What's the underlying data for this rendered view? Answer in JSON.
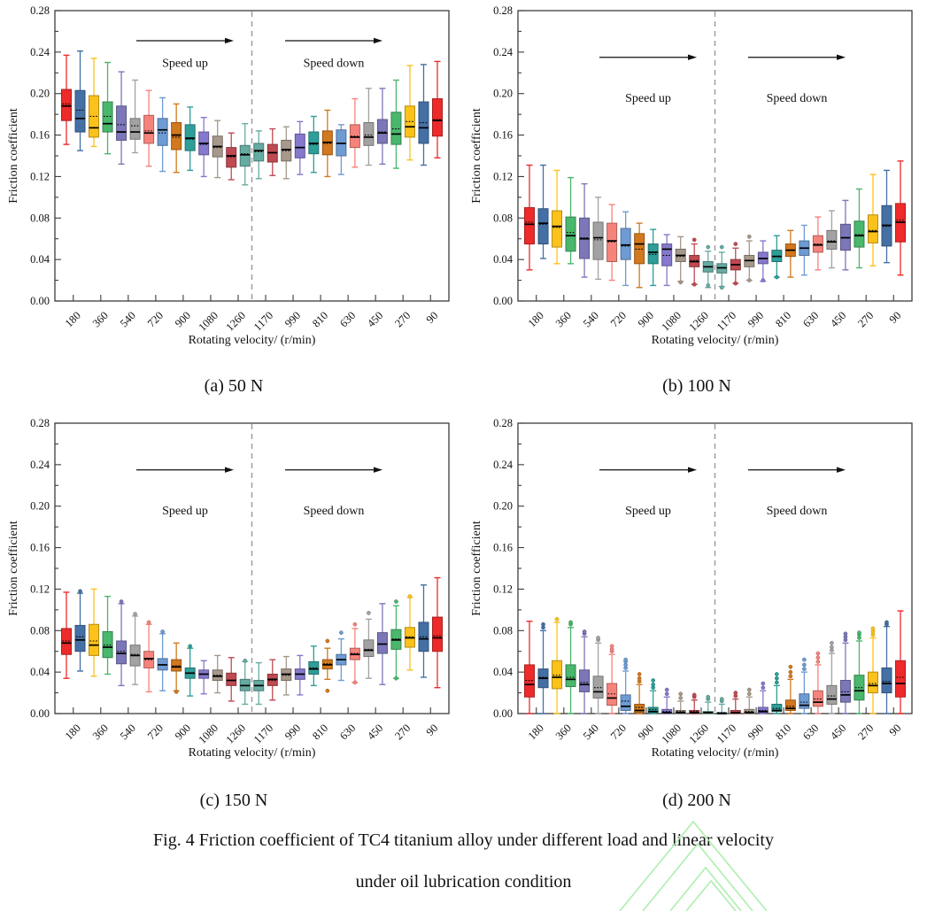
{
  "page": {
    "captions": {
      "a": "(a) 50 N",
      "b": "(b) 100 N",
      "c": "(c) 150 N",
      "d": "(d) 200 N"
    },
    "figure_caption_line1": "Fig. 4 Friction coefficient of TC4 titanium alloy under different load and linear velocity",
    "figure_caption_line2": "under oil lubrication condition"
  },
  "palette": [
    "#ED2B2B",
    "#4470A5",
    "#FBC21B",
    "#49B76C",
    "#7C77B8",
    "#A2A2A2",
    "#F5837C",
    "#6E9BD3",
    "#D2781E",
    "#2E9E99",
    "#8678CC",
    "#A6988A",
    "#BF4A52",
    "#66ABA2"
  ],
  "watermark_color": "#A5ECA5",
  "chart_shared": {
    "ylabel": "Friction coefficient",
    "xlabel": "Rotating velocity/ (r/min)",
    "ylim": [
      0,
      0.28
    ],
    "ytick_step": 0.04,
    "ytick_minor_step": 0.02,
    "x_tick_labels": [
      "180",
      "360",
      "540",
      "720",
      "900",
      "1080",
      "1260",
      "1170",
      "990",
      "810",
      "630",
      "450",
      "270",
      "90"
    ],
    "separator": "dashed-vertical-line-between-box-14-and-15",
    "color_rule": "box i uses palette[i] for i<14, palette[27-i] for i>=14",
    "box_format": "[whisker_low, q1, median, mean, q3, whisker_high, [outliers...]]"
  },
  "chart_data": [
    {
      "id": "a",
      "type": "box",
      "load": "50 N",
      "annotations": {
        "up_label": "Speed up",
        "down_label": "Speed down",
        "arrow_y": 0.251,
        "label_y": 0.226
      },
      "boxes": [
        [
          0.151,
          0.174,
          0.188,
          0.19,
          0.204,
          0.237
        ],
        [
          0.145,
          0.163,
          0.176,
          0.184,
          0.203,
          0.241
        ],
        [
          0.149,
          0.158,
          0.167,
          0.178,
          0.198,
          0.234
        ],
        [
          0.142,
          0.163,
          0.171,
          0.178,
          0.192,
          0.23
        ],
        [
          0.132,
          0.155,
          0.163,
          0.17,
          0.188,
          0.221
        ],
        [
          0.143,
          0.156,
          0.163,
          0.169,
          0.176,
          0.213
        ],
        [
          0.13,
          0.152,
          0.162,
          0.164,
          0.179,
          0.203
        ],
        [
          0.125,
          0.15,
          0.165,
          0.162,
          0.176,
          0.196
        ],
        [
          0.124,
          0.146,
          0.16,
          0.158,
          0.172,
          0.19
        ],
        [
          0.126,
          0.145,
          0.157,
          0.156,
          0.17,
          0.187
        ],
        [
          0.12,
          0.141,
          0.152,
          0.151,
          0.163,
          0.177
        ],
        [
          0.119,
          0.139,
          0.149,
          0.148,
          0.159,
          0.174
        ],
        [
          0.117,
          0.129,
          0.14,
          0.139,
          0.148,
          0.162
        ],
        [
          0.112,
          0.13,
          0.141,
          0.142,
          0.15,
          0.171
        ],
        [
          0.118,
          0.135,
          0.145,
          0.144,
          0.152,
          0.164
        ],
        [
          0.121,
          0.134,
          0.143,
          0.143,
          0.151,
          0.166
        ],
        [
          0.118,
          0.135,
          0.146,
          0.145,
          0.155,
          0.168
        ],
        [
          0.122,
          0.138,
          0.148,
          0.148,
          0.161,
          0.173
        ],
        [
          0.124,
          0.142,
          0.152,
          0.151,
          0.163,
          0.178
        ],
        [
          0.12,
          0.141,
          0.153,
          0.152,
          0.164,
          0.184
        ],
        [
          0.122,
          0.14,
          0.152,
          0.152,
          0.165,
          0.17
        ],
        [
          0.129,
          0.148,
          0.158,
          0.159,
          0.17,
          0.195
        ],
        [
          0.131,
          0.15,
          0.158,
          0.16,
          0.172,
          0.205
        ],
        [
          0.132,
          0.152,
          0.162,
          0.163,
          0.175,
          0.205
        ],
        [
          0.128,
          0.151,
          0.161,
          0.166,
          0.182,
          0.213
        ],
        [
          0.136,
          0.158,
          0.168,
          0.173,
          0.188,
          0.227
        ],
        [
          0.131,
          0.152,
          0.167,
          0.172,
          0.192,
          0.228
        ],
        [
          0.138,
          0.159,
          0.174,
          0.175,
          0.195,
          0.231
        ]
      ]
    },
    {
      "id": "b",
      "type": "box",
      "load": "100 N",
      "annotations": {
        "up_label": "Speed up",
        "down_label": "Speed down",
        "arrow_y": 0.235,
        "label_y": 0.192
      },
      "boxes": [
        [
          0.03,
          0.055,
          0.074,
          0.076,
          0.09,
          0.131
        ],
        [
          0.041,
          0.055,
          0.075,
          0.074,
          0.089,
          0.131
        ],
        [
          0.036,
          0.052,
          0.072,
          0.071,
          0.087,
          0.126
        ],
        [
          0.036,
          0.048,
          0.063,
          0.066,
          0.081,
          0.119
        ],
        [
          0.023,
          0.041,
          0.06,
          0.061,
          0.08,
          0.113
        ],
        [
          0.021,
          0.04,
          0.061,
          0.059,
          0.076,
          0.1
        ],
        [
          0.02,
          0.038,
          0.058,
          0.057,
          0.075,
          0.093
        ],
        [
          0.015,
          0.04,
          0.054,
          0.053,
          0.07,
          0.086
        ],
        [
          0.013,
          0.036,
          0.055,
          0.05,
          0.065,
          0.075
        ],
        [
          0.015,
          0.036,
          0.047,
          0.045,
          0.055,
          0.069
        ],
        [
          0.015,
          0.034,
          0.05,
          0.044,
          0.055,
          0.064
        ],
        [
          0.019,
          0.038,
          0.044,
          0.043,
          0.05,
          0.062,
          [
            0.018
          ]
        ],
        [
          0.016,
          0.033,
          0.038,
          0.039,
          0.044,
          0.055,
          [
            0.059,
            0.016
          ]
        ],
        [
          0.013,
          0.028,
          0.033,
          0.033,
          0.038,
          0.048,
          [
            0.052,
            0.015
          ]
        ],
        [
          0.014,
          0.027,
          0.032,
          0.032,
          0.036,
          0.047,
          [
            0.052,
            0.013
          ]
        ],
        [
          0.017,
          0.03,
          0.035,
          0.035,
          0.04,
          0.051,
          [
            0.055,
            0.017
          ]
        ],
        [
          0.02,
          0.033,
          0.039,
          0.039,
          0.044,
          0.058,
          [
            0.062,
            0.02
          ]
        ],
        [
          0.019,
          0.036,
          0.041,
          0.041,
          0.047,
          0.058,
          [
            0.02
          ]
        ],
        [
          0.023,
          0.038,
          0.043,
          0.043,
          0.049,
          0.063,
          [
            0.023
          ]
        ],
        [
          0.023,
          0.043,
          0.049,
          0.049,
          0.055,
          0.068
        ],
        [
          0.025,
          0.044,
          0.051,
          0.051,
          0.058,
          0.073
        ],
        [
          0.03,
          0.047,
          0.054,
          0.055,
          0.063,
          0.081
        ],
        [
          0.032,
          0.05,
          0.057,
          0.058,
          0.068,
          0.087
        ],
        [
          0.03,
          0.049,
          0.061,
          0.061,
          0.074,
          0.097
        ],
        [
          0.032,
          0.052,
          0.063,
          0.064,
          0.077,
          0.108
        ],
        [
          0.034,
          0.056,
          0.067,
          0.068,
          0.083,
          0.122
        ],
        [
          0.037,
          0.053,
          0.073,
          0.072,
          0.092,
          0.126
        ],
        [
          0.025,
          0.057,
          0.076,
          0.078,
          0.094,
          0.135
        ]
      ]
    },
    {
      "id": "c",
      "type": "box",
      "load": "150 N",
      "annotations": {
        "up_label": "Speed up",
        "down_label": "Speed down",
        "arrow_y": 0.235,
        "label_y": 0.192
      },
      "boxes": [
        [
          0.034,
          0.057,
          0.068,
          0.07,
          0.082,
          0.117
        ],
        [
          0.041,
          0.06,
          0.071,
          0.074,
          0.085,
          0.116,
          [
            0.118
          ]
        ],
        [
          0.036,
          0.056,
          0.066,
          0.07,
          0.086,
          0.12
        ],
        [
          0.038,
          0.054,
          0.064,
          0.066,
          0.079,
          0.113
        ],
        [
          0.027,
          0.048,
          0.058,
          0.06,
          0.07,
          0.106,
          [
            0.108
          ]
        ],
        [
          0.028,
          0.046,
          0.056,
          0.057,
          0.066,
          0.094,
          [
            0.096
          ]
        ],
        [
          0.021,
          0.044,
          0.053,
          0.052,
          0.06,
          0.086,
          [
            0.088
          ]
        ],
        [
          0.022,
          0.042,
          0.047,
          0.047,
          0.053,
          0.077,
          [
            0.079
          ]
        ],
        [
          0.022,
          0.041,
          0.045,
          0.046,
          0.052,
          0.068,
          [
            0.021
          ]
        ],
        [
          0.017,
          0.034,
          0.039,
          0.039,
          0.044,
          0.063,
          [
            0.065
          ]
        ],
        [
          0.019,
          0.034,
          0.038,
          0.038,
          0.042,
          0.051
        ],
        [
          0.02,
          0.032,
          0.036,
          0.037,
          0.042,
          0.056
        ],
        [
          0.012,
          0.027,
          0.032,
          0.032,
          0.039,
          0.054
        ],
        [
          0.009,
          0.022,
          0.027,
          0.027,
          0.033,
          0.05,
          [
            0.051
          ]
        ],
        [
          0.009,
          0.022,
          0.027,
          0.027,
          0.032,
          0.049
        ],
        [
          0.013,
          0.027,
          0.033,
          0.032,
          0.038,
          0.052
        ],
        [
          0.018,
          0.032,
          0.038,
          0.037,
          0.043,
          0.055
        ],
        [
          0.018,
          0.033,
          0.038,
          0.038,
          0.043,
          0.056
        ],
        [
          0.027,
          0.038,
          0.043,
          0.044,
          0.05,
          0.065
        ],
        [
          0.033,
          0.043,
          0.047,
          0.048,
          0.052,
          0.063,
          [
            0.07,
            0.022
          ]
        ],
        [
          0.032,
          0.047,
          0.052,
          0.052,
          0.057,
          0.072,
          [
            0.078
          ]
        ],
        [
          0.03,
          0.052,
          0.057,
          0.058,
          0.063,
          0.082,
          [
            0.086,
            0.03
          ]
        ],
        [
          0.034,
          0.055,
          0.061,
          0.062,
          0.071,
          0.091,
          [
            0.097
          ]
        ],
        [
          0.028,
          0.058,
          0.067,
          0.067,
          0.078,
          0.106
        ],
        [
          0.034,
          0.062,
          0.071,
          0.072,
          0.081,
          0.104,
          [
            0.108,
            0.034
          ]
        ],
        [
          0.042,
          0.064,
          0.073,
          0.074,
          0.083,
          0.112,
          [
            0.113
          ]
        ],
        [
          0.035,
          0.06,
          0.072,
          0.074,
          0.088,
          0.124
        ],
        [
          0.025,
          0.06,
          0.073,
          0.075,
          0.093,
          0.131
        ]
      ]
    },
    {
      "id": "d",
      "type": "box",
      "load": "200 N",
      "annotations": {
        "up_label": "Speed up",
        "down_label": "Speed down",
        "arrow_y": 0.235,
        "label_y": 0.192
      },
      "boxes": [
        [
          0.0,
          0.016,
          0.028,
          0.032,
          0.047,
          0.089
        ],
        [
          0.0,
          0.025,
          0.034,
          0.035,
          0.043,
          0.08,
          [
            0.083,
            0.086
          ]
        ],
        [
          0.0,
          0.024,
          0.035,
          0.037,
          0.051,
          0.088,
          [
            0.091
          ]
        ],
        [
          0.0,
          0.026,
          0.033,
          0.035,
          0.047,
          0.083,
          [
            0.086,
            0.088
          ]
        ],
        [
          0.0,
          0.021,
          0.028,
          0.03,
          0.042,
          0.074,
          [
            0.077,
            0.079
          ]
        ],
        [
          0.0,
          0.015,
          0.021,
          0.025,
          0.036,
          0.068,
          [
            0.071,
            0.073
          ]
        ],
        [
          0.0,
          0.008,
          0.015,
          0.019,
          0.029,
          0.057,
          [
            0.06,
            0.062,
            0.065
          ]
        ],
        [
          0.0,
          0.003,
          0.007,
          0.012,
          0.018,
          0.041,
          [
            0.044,
            0.047,
            0.05,
            0.052
          ]
        ],
        [
          0.0,
          0.001,
          0.003,
          0.006,
          0.009,
          0.028,
          [
            0.031,
            0.034,
            0.038
          ]
        ],
        [
          0.0,
          0.001,
          0.002,
          0.004,
          0.006,
          0.022,
          [
            0.025,
            0.028,
            0.032
          ]
        ],
        [
          0.0,
          0.0,
          0.001,
          0.002,
          0.004,
          0.016,
          [
            0.019,
            0.023
          ]
        ],
        [
          0.0,
          0.0,
          0.001,
          0.002,
          0.003,
          0.012,
          [
            0.015,
            0.019
          ]
        ],
        [
          0.0,
          0.0,
          0.001,
          0.002,
          0.003,
          0.013,
          [
            0.016,
            0.018
          ]
        ],
        [
          0.0,
          0.0,
          0.001,
          0.001,
          0.002,
          0.011,
          [
            0.014,
            0.016
          ]
        ],
        [
          0.0,
          0.0,
          0.0,
          0.001,
          0.001,
          0.009,
          [
            0.012,
            0.014
          ]
        ],
        [
          0.0,
          0.0,
          0.001,
          0.001,
          0.003,
          0.014,
          [
            0.017,
            0.02
          ]
        ],
        [
          0.0,
          0.0,
          0.001,
          0.002,
          0.004,
          0.016,
          [
            0.019,
            0.023
          ]
        ],
        [
          0.0,
          0.001,
          0.002,
          0.003,
          0.006,
          0.022,
          [
            0.025,
            0.029
          ]
        ],
        [
          0.0,
          0.002,
          0.003,
          0.005,
          0.009,
          0.027,
          [
            0.03,
            0.034,
            0.038
          ]
        ],
        [
          0.0,
          0.003,
          0.005,
          0.007,
          0.013,
          0.033,
          [
            0.036,
            0.04,
            0.045
          ]
        ],
        [
          0.0,
          0.005,
          0.008,
          0.011,
          0.019,
          0.04,
          [
            0.043,
            0.047,
            0.052
          ]
        ],
        [
          0.0,
          0.007,
          0.011,
          0.014,
          0.022,
          0.047,
          [
            0.05,
            0.054,
            0.058
          ]
        ],
        [
          0.0,
          0.009,
          0.014,
          0.017,
          0.027,
          0.058,
          [
            0.061,
            0.064,
            0.068
          ]
        ],
        [
          0.0,
          0.011,
          0.018,
          0.021,
          0.032,
          0.068,
          [
            0.071,
            0.074,
            0.077
          ]
        ],
        [
          0.0,
          0.013,
          0.022,
          0.025,
          0.037,
          0.07,
          [
            0.073,
            0.076,
            0.078
          ]
        ],
        [
          0.0,
          0.02,
          0.027,
          0.029,
          0.04,
          0.073,
          [
            0.076,
            0.079,
            0.082
          ]
        ],
        [
          0.0,
          0.02,
          0.029,
          0.031,
          0.044,
          0.084,
          [
            0.086,
            0.088
          ]
        ],
        [
          0.0,
          0.016,
          0.029,
          0.035,
          0.051,
          0.099
        ]
      ]
    }
  ]
}
